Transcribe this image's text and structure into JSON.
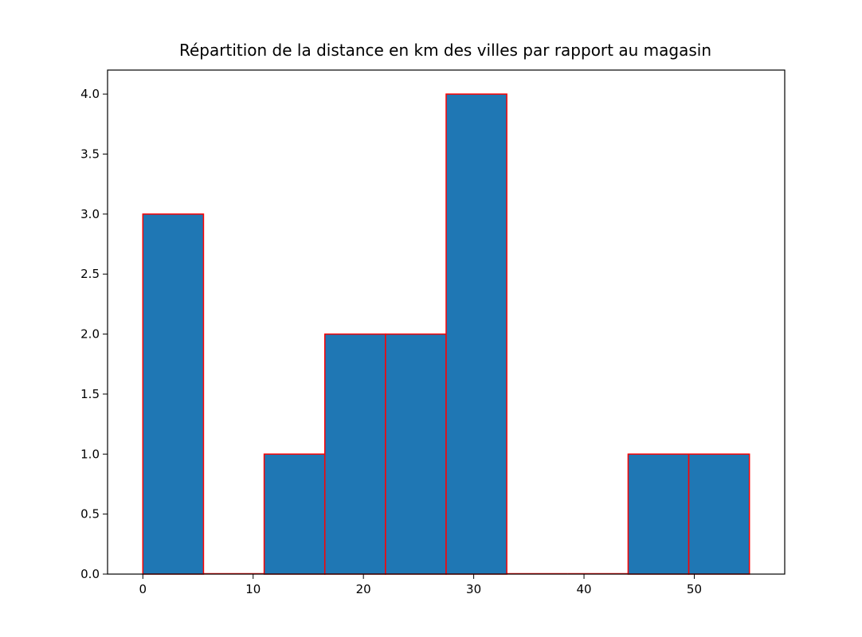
{
  "chart_data": {
    "type": "bar",
    "title": "Répartition de la distance en km des villes par rapport au magasin",
    "xlabel": "",
    "ylabel": "",
    "bin_edges": [
      0,
      5.5,
      11,
      16.5,
      22,
      27.5,
      33,
      38.5,
      44,
      49.5,
      55
    ],
    "values": [
      3,
      0,
      1,
      2,
      2,
      4,
      0,
      0,
      1,
      1
    ],
    "xlim": [
      -3.2,
      58.2
    ],
    "ylim": [
      0,
      4.2
    ],
    "xticks": [
      0,
      10,
      20,
      30,
      40,
      50
    ],
    "xtick_labels": [
      "0",
      "10",
      "20",
      "30",
      "40",
      "50"
    ],
    "yticks": [
      0,
      0.5,
      1,
      1.5,
      2,
      2.5,
      3,
      3.5,
      4
    ],
    "ytick_labels": [
      "0.0",
      "0.5",
      "1.0",
      "1.5",
      "2.0",
      "2.5",
      "3.0",
      "3.5",
      "4.0"
    ],
    "grid": false,
    "legend": "none",
    "bar_fill_color": "#1f77b4",
    "bar_edge_color": "#ff0000"
  }
}
